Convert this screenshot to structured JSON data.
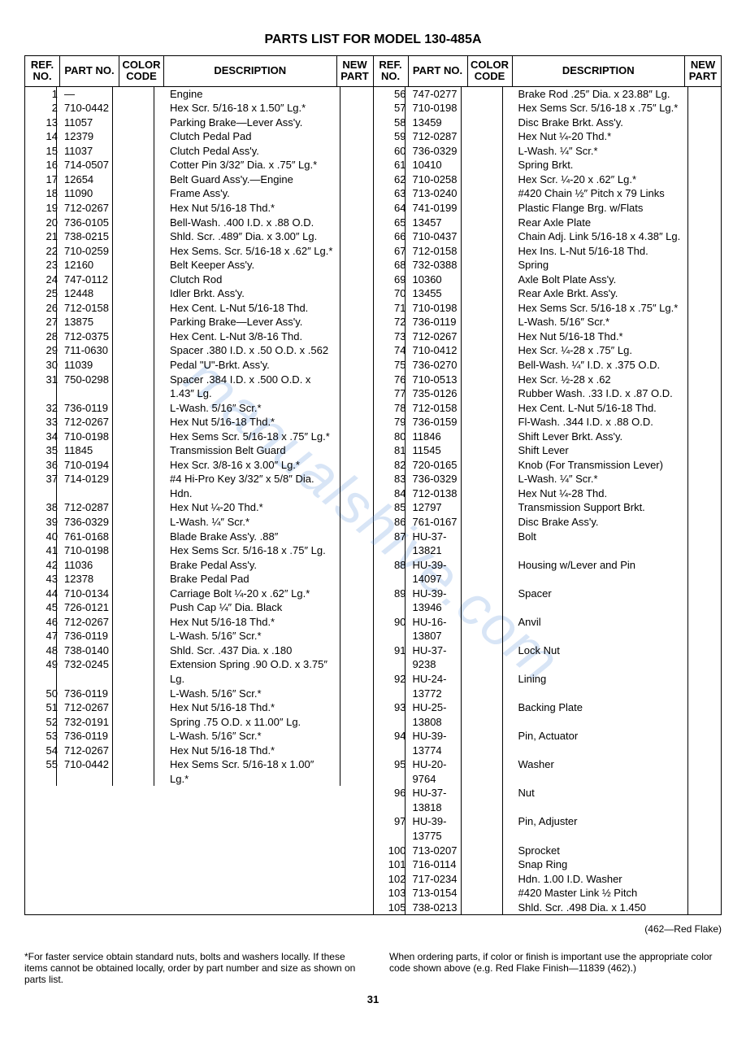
{
  "title": "PARTS LIST FOR MODEL 130-485A",
  "headers": {
    "ref": "REF. NO.",
    "part": "PART NO.",
    "color": "COLOR CODE",
    "desc": "DESCRIPTION",
    "new": "NEW PART"
  },
  "left_rows": [
    {
      "ref": "1",
      "part": "—",
      "color": "",
      "desc": "Engine"
    },
    {
      "ref": "2",
      "part": "710-0442",
      "color": "",
      "desc": "Hex Scr. 5/16-18 x 1.50″ Lg.*"
    },
    {
      "ref": "13",
      "part": "11057",
      "color": "",
      "desc": "Parking Brake—Lever Ass'y."
    },
    {
      "ref": "14",
      "part": "12379",
      "color": "",
      "desc": "Clutch Pedal Pad"
    },
    {
      "ref": "15",
      "part": "11037",
      "color": "",
      "desc": "Clutch Pedal Ass'y."
    },
    {
      "ref": "16",
      "part": "714-0507",
      "color": "",
      "desc": "Cotter Pin 3/32″ Dia. x .75″ Lg.*"
    },
    {
      "ref": "17",
      "part": "12654",
      "color": "",
      "desc": "Belt Guard Ass'y.—Engine"
    },
    {
      "ref": "18",
      "part": "11090",
      "color": "",
      "desc": "Frame Ass'y."
    },
    {
      "ref": "19",
      "part": "712-0267",
      "color": "",
      "desc": "Hex Nut 5/16-18 Thd.*"
    },
    {
      "ref": "20",
      "part": "736-0105",
      "color": "",
      "desc": "Bell-Wash. .400 I.D. x .88 O.D."
    },
    {
      "ref": "21",
      "part": "738-0215",
      "color": "",
      "desc": "Shld. Scr. .489″ Dia. x 3.00″ Lg."
    },
    {
      "ref": "22",
      "part": "710-0259",
      "color": "",
      "desc": "Hex Sems. Scr. 5/16-18 x .62″ Lg.*"
    },
    {
      "ref": "23",
      "part": "12160",
      "color": "",
      "desc": "Belt Keeper Ass'y."
    },
    {
      "ref": "24",
      "part": "747-0112",
      "color": "",
      "desc": "Clutch Rod"
    },
    {
      "ref": "25",
      "part": "12448",
      "color": "",
      "desc": "Idler Brkt. Ass'y."
    },
    {
      "ref": "26",
      "part": "712-0158",
      "color": "",
      "desc": "Hex Cent. L-Nut 5/16-18 Thd."
    },
    {
      "ref": "27",
      "part": "13875",
      "color": "",
      "desc": "Parking Brake—Lever Ass'y."
    },
    {
      "ref": "28",
      "part": "712-0375",
      "color": "",
      "desc": "Hex Cent. L-Nut 3/8-16 Thd."
    },
    {
      "ref": "29",
      "part": "711-0630",
      "color": "",
      "desc": "Spacer .380 I.D. x .50 O.D. x .562"
    },
    {
      "ref": "30",
      "part": "11039",
      "color": "",
      "desc": "Pedal \"U\"-Brkt. Ass'y."
    },
    {
      "ref": "31",
      "part": "750-0298",
      "color": "",
      "desc": "Spacer .384 I.D. x .500 O.D. x 1.43″ Lg."
    },
    {
      "ref": "32",
      "part": "736-0119",
      "color": "",
      "desc": "L-Wash. 5/16″ Scr.*"
    },
    {
      "ref": "33",
      "part": "712-0267",
      "color": "",
      "desc": "Hex Nut 5/16-18 Thd.*"
    },
    {
      "ref": "34",
      "part": "710-0198",
      "color": "",
      "desc": "Hex Sems Scr. 5/16-18 x .75″ Lg.*"
    },
    {
      "ref": "35",
      "part": "11845",
      "color": "",
      "desc": "Transmission Belt Guard"
    },
    {
      "ref": "36",
      "part": "710-0194",
      "color": "",
      "desc": "Hex Scr. 3/8-16 x 3.00″ Lg.*"
    },
    {
      "ref": "37",
      "part": "714-0129",
      "color": "",
      "desc": "#4 Hi-Pro Key 3/32″ x 5/8″ Dia. Hdn."
    },
    {
      "ref": "38",
      "part": "712-0287",
      "color": "",
      "desc": "Hex Nut ¼-20 Thd.*"
    },
    {
      "ref": "39",
      "part": "736-0329",
      "color": "",
      "desc": "L-Wash. ¼″ Scr.*"
    },
    {
      "ref": "40",
      "part": "761-0168",
      "color": "",
      "desc": "Blade Brake Ass'y. .88″"
    },
    {
      "ref": "41",
      "part": "710-0198",
      "color": "",
      "desc": "Hex Sems Scr. 5/16-18 x .75″ Lg."
    },
    {
      "ref": "42",
      "part": "11036",
      "color": "",
      "desc": "Brake Pedal Ass'y."
    },
    {
      "ref": "43",
      "part": "12378",
      "color": "",
      "desc": "Brake Pedal Pad"
    },
    {
      "ref": "44",
      "part": "710-0134",
      "color": "",
      "desc": "Carriage Bolt ¼-20 x .62″ Lg.*"
    },
    {
      "ref": "45",
      "part": "726-0121",
      "color": "",
      "desc": "Push Cap ¼″ Dia. Black"
    },
    {
      "ref": "46",
      "part": "712-0267",
      "color": "",
      "desc": "Hex Nut 5/16-18 Thd.*"
    },
    {
      "ref": "47",
      "part": "736-0119",
      "color": "",
      "desc": "L-Wash. 5/16″ Scr.*"
    },
    {
      "ref": "48",
      "part": "738-0140",
      "color": "",
      "desc": "Shld. Scr. .437 Dia. x .180"
    },
    {
      "ref": "49",
      "part": "732-0245",
      "color": "",
      "desc": "Extension Spring .90 O.D. x 3.75″ Lg."
    },
    {
      "ref": "50",
      "part": "736-0119",
      "color": "",
      "desc": "L-Wash. 5/16″ Scr.*"
    },
    {
      "ref": "51",
      "part": "712-0267",
      "color": "",
      "desc": "Hex Nut 5/16-18 Thd.*"
    },
    {
      "ref": "52",
      "part": "732-0191",
      "color": "",
      "desc": "Spring .75 O.D. x 11.00″ Lg."
    },
    {
      "ref": "53",
      "part": "736-0119",
      "color": "",
      "desc": "L-Wash. 5/16″ Scr.*"
    },
    {
      "ref": "54",
      "part": "712-0267",
      "color": "",
      "desc": "Hex Nut 5/16-18 Thd.*"
    },
    {
      "ref": "55",
      "part": "710-0442",
      "color": "",
      "desc": "Hex Sems Scr. 5/16-18 x 1.00″ Lg.*"
    }
  ],
  "right_rows": [
    {
      "ref": "56",
      "part": "747-0277",
      "color": "",
      "desc": "Brake Rod .25″ Dia. x 23.88″ Lg."
    },
    {
      "ref": "57",
      "part": "710-0198",
      "color": "",
      "desc": "Hex Sems Scr. 5/16-18 x .75″ Lg.*"
    },
    {
      "ref": "58",
      "part": "13459",
      "color": "",
      "desc": "Disc Brake Brkt. Ass'y."
    },
    {
      "ref": "59",
      "part": "712-0287",
      "color": "",
      "desc": "Hex Nut ¼-20 Thd.*"
    },
    {
      "ref": "60",
      "part": "736-0329",
      "color": "",
      "desc": "L-Wash. ¼″ Scr.*"
    },
    {
      "ref": "61",
      "part": "10410",
      "color": "",
      "desc": "Spring Brkt."
    },
    {
      "ref": "62",
      "part": "710-0258",
      "color": "",
      "desc": "Hex Scr. ¼-20 x .62″ Lg.*"
    },
    {
      "ref": "63",
      "part": "713-0240",
      "color": "",
      "desc": "#420 Chain ½″ Pitch x 79 Links"
    },
    {
      "ref": "64",
      "part": "741-0199",
      "color": "",
      "desc": "Plastic Flange Brg. w/Flats"
    },
    {
      "ref": "65",
      "part": "13457",
      "color": "",
      "desc": "Rear Axle Plate"
    },
    {
      "ref": "66",
      "part": "710-0437",
      "color": "",
      "desc": "Chain Adj. Link 5/16-18 x 4.38″ Lg."
    },
    {
      "ref": "67",
      "part": "712-0158",
      "color": "",
      "desc": "Hex Ins. L-Nut 5/16-18 Thd."
    },
    {
      "ref": "68",
      "part": "732-0388",
      "color": "",
      "desc": "Spring"
    },
    {
      "ref": "69",
      "part": "10360",
      "color": "",
      "desc": "Axle Bolt Plate Ass'y."
    },
    {
      "ref": "70",
      "part": "13455",
      "color": "",
      "desc": "Rear Axle Brkt. Ass'y."
    },
    {
      "ref": "71",
      "part": "710-0198",
      "color": "",
      "desc": "Hex Sems Scr. 5/16-18 x .75″ Lg.*"
    },
    {
      "ref": "72",
      "part": "736-0119",
      "color": "",
      "desc": "L-Wash. 5/16″ Scr.*"
    },
    {
      "ref": "73",
      "part": "712-0267",
      "color": "",
      "desc": "Hex Nut 5/16-18 Thd.*"
    },
    {
      "ref": "74",
      "part": "710-0412",
      "color": "",
      "desc": "Hex Scr. ¼-28 x .75″ Lg."
    },
    {
      "ref": "75",
      "part": "736-0270",
      "color": "",
      "desc": "Bell-Wash. ¼″ I.D. x .375 O.D."
    },
    {
      "ref": "76",
      "part": "710-0513",
      "color": "",
      "desc": "Hex Scr. ½-28 x .62"
    },
    {
      "ref": "77",
      "part": "735-0126",
      "color": "",
      "desc": "Rubber Wash. .33 I.D. x .87 O.D."
    },
    {
      "ref": "78",
      "part": "712-0158",
      "color": "",
      "desc": "Hex Cent. L-Nut 5/16-18 Thd."
    },
    {
      "ref": "79",
      "part": "736-0159",
      "color": "",
      "desc": "Fl-Wash. .344 I.D. x .88 O.D."
    },
    {
      "ref": "80",
      "part": "11846",
      "color": "",
      "desc": "Shift Lever Brkt. Ass'y."
    },
    {
      "ref": "81",
      "part": "11545",
      "color": "",
      "desc": "Shift Lever"
    },
    {
      "ref": "82",
      "part": "720-0165",
      "color": "",
      "desc": "Knob (For Transmission Lever)"
    },
    {
      "ref": "83",
      "part": "736-0329",
      "color": "",
      "desc": "L-Wash. ¼″ Scr.*"
    },
    {
      "ref": "84",
      "part": "712-0138",
      "color": "",
      "desc": "Hex Nut ¼-28 Thd."
    },
    {
      "ref": "85",
      "part": "12797",
      "color": "",
      "desc": "Transmission Support Brkt."
    },
    {
      "ref": "86",
      "part": "761-0167",
      "color": "",
      "desc": "Disc Brake Ass'y."
    },
    {
      "ref": "87",
      "part": "HU-37-13821",
      "color": "",
      "desc": "Bolt"
    },
    {
      "ref": "88",
      "part": "HU-39-14097",
      "color": "",
      "desc": "Housing w/Lever and Pin"
    },
    {
      "ref": "89",
      "part": "HU-39-13946",
      "color": "",
      "desc": "Spacer"
    },
    {
      "ref": "90",
      "part": "HU-16-13807",
      "color": "",
      "desc": "Anvil"
    },
    {
      "ref": "91",
      "part": "HU-37-9238",
      "color": "",
      "desc": "Lock Nut"
    },
    {
      "ref": "92",
      "part": "HU-24-13772",
      "color": "",
      "desc": "Lining"
    },
    {
      "ref": "93",
      "part": "HU-25-13808",
      "color": "",
      "desc": "Backing Plate"
    },
    {
      "ref": "94",
      "part": "HU-39-13774",
      "color": "",
      "desc": "Pin, Actuator"
    },
    {
      "ref": "95",
      "part": "HU-20-9764",
      "color": "",
      "desc": "Washer"
    },
    {
      "ref": "96",
      "part": "HU-37-13818",
      "color": "",
      "desc": "Nut"
    },
    {
      "ref": "97",
      "part": "HU-39-13775",
      "color": "",
      "desc": "Pin, Adjuster"
    },
    {
      "ref": "100",
      "part": "713-0207",
      "color": "",
      "desc": "Sprocket"
    },
    {
      "ref": "101",
      "part": "716-0114",
      "color": "",
      "desc": "Snap Ring"
    },
    {
      "ref": "102",
      "part": "717-0234",
      "color": "",
      "desc": "Hdn. 1.00 I.D. Washer"
    },
    {
      "ref": "103",
      "part": "713-0154",
      "color": "",
      "desc": "#420 Master Link ½ Pitch"
    },
    {
      "ref": "105",
      "part": "738-0213",
      "color": "",
      "desc": "Shld. Scr. .498 Dia. x 1.450"
    }
  ],
  "redflake": "(462—Red Flake)",
  "footer_left": "*For faster service obtain standard nuts, bolts and washers locally. If these items cannot be obtained locally, order by part number and size as shown on parts list.",
  "footer_right": "When ordering parts, if color or finish is important use the appropriate color code shown above (e.g. Red Flake Finish—11839 (462).)",
  "page_number": "31",
  "watermark": "manualshive.com"
}
